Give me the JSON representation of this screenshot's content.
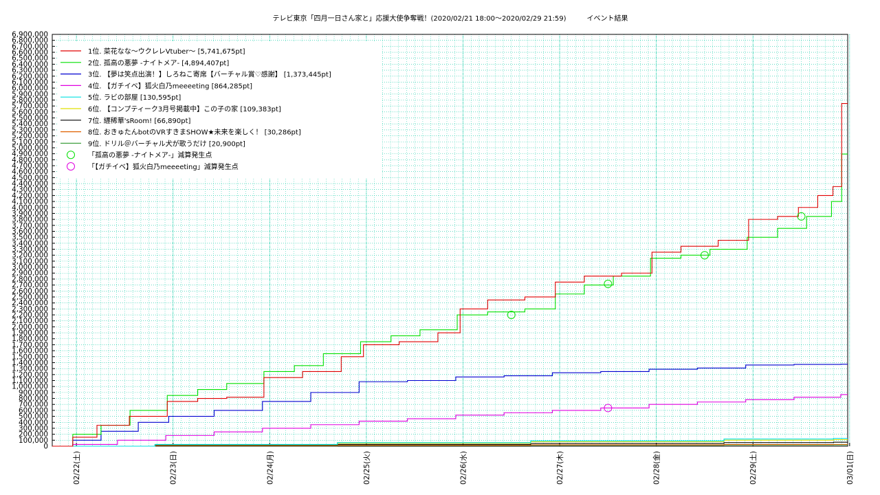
{
  "chart_data": {
    "type": "line",
    "title": "テレビ東京「四月一日さん家と」応援大使争奪戦！(2020/02/21 18:00〜2020/02/29 21:59)　　　イベント結果",
    "xlabel": "",
    "ylabel": "",
    "ylim": [
      0,
      6900000
    ],
    "ytick_step": 100000,
    "x_ticks": [
      "02/22(土)",
      "02/23(日)",
      "02/24(月)",
      "02/25(火)",
      "02/26(水)",
      "02/27(木)",
      "02/28(金)",
      "02/29(土)",
      "03/01(日)"
    ],
    "x_range_days": [
      -0.25,
      7.98
    ],
    "grid": true,
    "legend_position": "top-left",
    "series": [
      {
        "name": "1位. 菜花なな〜ウクレレVtuber〜 [5,741,675pt]",
        "color": "#e00000",
        "x": [
          -0.25,
          0.0,
          0.25,
          0.6,
          1.0,
          1.3,
          1.6,
          2.0,
          2.4,
          2.8,
          3.0,
          3.4,
          3.8,
          4.0,
          4.3,
          4.7,
          5.0,
          5.3,
          5.7,
          6.0,
          6.3,
          6.7,
          7.0,
          7.3,
          7.5,
          7.7,
          7.85,
          7.93,
          7.98
        ],
        "y": [
          0,
          150000,
          350000,
          500000,
          750000,
          800000,
          820000,
          1150000,
          1250000,
          1500000,
          1700000,
          1750000,
          1900000,
          2300000,
          2450000,
          2500000,
          2750000,
          2850000,
          2900000,
          3250000,
          3350000,
          3450000,
          3800000,
          3850000,
          4000000,
          4200000,
          4350000,
          5741675,
          5741675
        ]
      },
      {
        "name": "2位. 孤高の悪夢 -ナイトメア- [4,894,407pt]",
        "color": "#00e000",
        "x": [
          -0.25,
          0.0,
          0.3,
          0.6,
          1.0,
          1.3,
          1.6,
          2.0,
          2.3,
          2.6,
          3.0,
          3.3,
          3.6,
          4.0,
          4.3,
          4.7,
          5.0,
          5.3,
          5.6,
          6.0,
          6.3,
          6.6,
          7.0,
          7.3,
          7.6,
          7.85,
          7.93,
          7.98
        ],
        "y": [
          0,
          200000,
          350000,
          600000,
          850000,
          950000,
          1050000,
          1250000,
          1350000,
          1550000,
          1750000,
          1850000,
          1950000,
          2200000,
          2250000,
          2300000,
          2550000,
          2700000,
          2850000,
          3150000,
          3200000,
          3300000,
          3500000,
          3650000,
          3850000,
          4100000,
          4894407,
          4894407
        ]
      },
      {
        "name": "3位. 【夢は笑点出演！】しろねこ寄席【バーチャル賞♡感謝】 [1,373,445pt]",
        "color": "#0000d0",
        "x": [
          -0.25,
          0.0,
          0.3,
          0.7,
          1.0,
          1.5,
          2.0,
          2.5,
          3.0,
          3.5,
          4.0,
          4.5,
          5.0,
          5.5,
          6.0,
          6.5,
          7.0,
          7.5,
          7.98
        ],
        "y": [
          0,
          100000,
          250000,
          400000,
          500000,
          600000,
          750000,
          900000,
          1080000,
          1100000,
          1160000,
          1180000,
          1230000,
          1250000,
          1290000,
          1310000,
          1360000,
          1370000,
          1373445
        ]
      },
      {
        "name": "4位. 【ガチイベ】狐火白乃meeeeting [864,285pt]",
        "color": "#e000e0",
        "x": [
          -0.25,
          0.0,
          0.5,
          1.0,
          1.5,
          2.0,
          2.5,
          3.0,
          3.5,
          4.0,
          4.5,
          5.0,
          5.5,
          6.0,
          6.5,
          7.0,
          7.5,
          7.98
        ],
        "y": [
          0,
          30000,
          100000,
          180000,
          240000,
          300000,
          360000,
          420000,
          460000,
          520000,
          560000,
          600000,
          640000,
          700000,
          740000,
          780000,
          820000,
          864285
        ]
      },
      {
        "name": "5位. ラビの部屋 [130,595pt]",
        "color": "#00e0e0",
        "x": [
          -0.25,
          1.0,
          3.0,
          5.0,
          7.0,
          7.98
        ],
        "y": [
          0,
          30000,
          60000,
          90000,
          120000,
          130595
        ]
      },
      {
        "name": "6位. 【コンプティーク3月号掲載中】この子の家 [109,383pt]",
        "color": "#e0e000",
        "x": [
          -0.25,
          1.0,
          3.0,
          5.0,
          7.0,
          7.98
        ],
        "y": [
          0,
          25000,
          50000,
          75000,
          100000,
          109383
        ]
      },
      {
        "name": "7位. 纒稀華'sRoom! [66,890pt]",
        "color": "#000000",
        "x": [
          -0.25,
          1.0,
          3.0,
          5.0,
          7.0,
          7.98
        ],
        "y": [
          0,
          15000,
          30000,
          45000,
          60000,
          66890
        ]
      },
      {
        "name": "8位. おきゅたんbotのVRすきまSHOW★未来を楽しく！ [30,286pt]",
        "color": "#e06000",
        "x": [
          -0.25,
          1.0,
          3.0,
          5.0,
          7.0,
          7.98
        ],
        "y": [
          0,
          8000,
          15000,
          22000,
          28000,
          30286
        ]
      },
      {
        "name": "9位. ドリル＠バーチャル犬が歌うだけ [20,900pt]",
        "color": "#40a040",
        "x": [
          -0.25,
          1.0,
          3.0,
          5.0,
          7.0,
          7.98
        ],
        "y": [
          0,
          5000,
          10000,
          15000,
          19000,
          20900
        ]
      }
    ],
    "markers": [
      {
        "name": "「孤高の悪夢 -ナイトメア-」減算発生点",
        "color": "#00e000",
        "points": [
          [
            4.5,
            2200000
          ],
          [
            5.5,
            2720000
          ],
          [
            6.5,
            3200000
          ],
          [
            7.5,
            3850000
          ]
        ]
      },
      {
        "name": "「【ガチイベ】狐火白乃meeeeting」減算発生点",
        "color": "#e000e0",
        "points": [
          [
            5.5,
            640000
          ]
        ]
      }
    ]
  }
}
